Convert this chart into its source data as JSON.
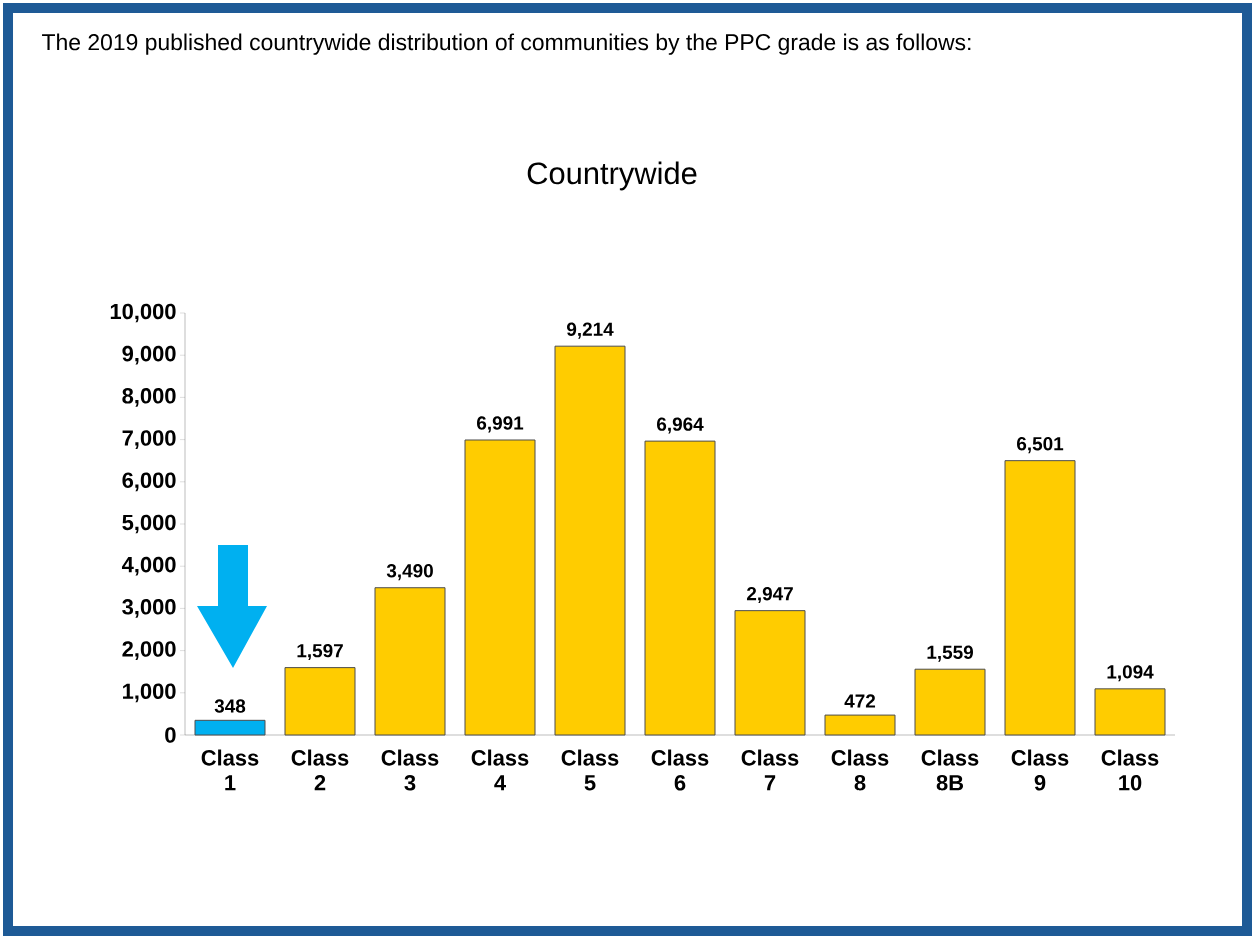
{
  "chart_data": {
    "type": "bar",
    "title": "Countrywide",
    "annotations": [
      "The 2019 published countrywide distribution of communities by the PPC grade is as follows:"
    ],
    "categories": [
      "Class 1",
      "Class 2",
      "Class 3",
      "Class 4",
      "Class 5",
      "Class 6",
      "Class 7",
      "Class 8",
      "Class 8B",
      "Class 9",
      "Class 10"
    ],
    "values": [
      348,
      1597,
      3490,
      6991,
      9214,
      6964,
      2947,
      472,
      1559,
      6501,
      1094
    ],
    "colors": [
      "#00b0f0",
      "#ffcc00",
      "#ffcc00",
      "#ffcc00",
      "#ffcc00",
      "#ffcc00",
      "#ffcc00",
      "#ffcc00",
      "#ffcc00",
      "#ffcc00",
      "#ffcc00"
    ],
    "value_labels": [
      "348",
      "1,597",
      "3,490",
      "6,991",
      "9,214",
      "6,964",
      "2,947",
      "472",
      "1,559",
      "6,501",
      "1,094"
    ],
    "ylim": [
      0,
      10000
    ],
    "yticks": [
      {
        "value": 0,
        "label": "0"
      },
      {
        "value": 1000,
        "label": "1,000"
      },
      {
        "value": 2000,
        "label": "2,000"
      },
      {
        "value": 3000,
        "label": "3,000"
      },
      {
        "value": 4000,
        "label": "4,000"
      },
      {
        "value": 5000,
        "label": "5,000"
      },
      {
        "value": 6000,
        "label": "6,000"
      },
      {
        "value": 7000,
        "label": "7,000"
      },
      {
        "value": 8000,
        "label": "8,000"
      },
      {
        "value": 9000,
        "label": "9,000"
      },
      {
        "value": 10000,
        "label": "10,000"
      }
    ],
    "grid": false
  }
}
